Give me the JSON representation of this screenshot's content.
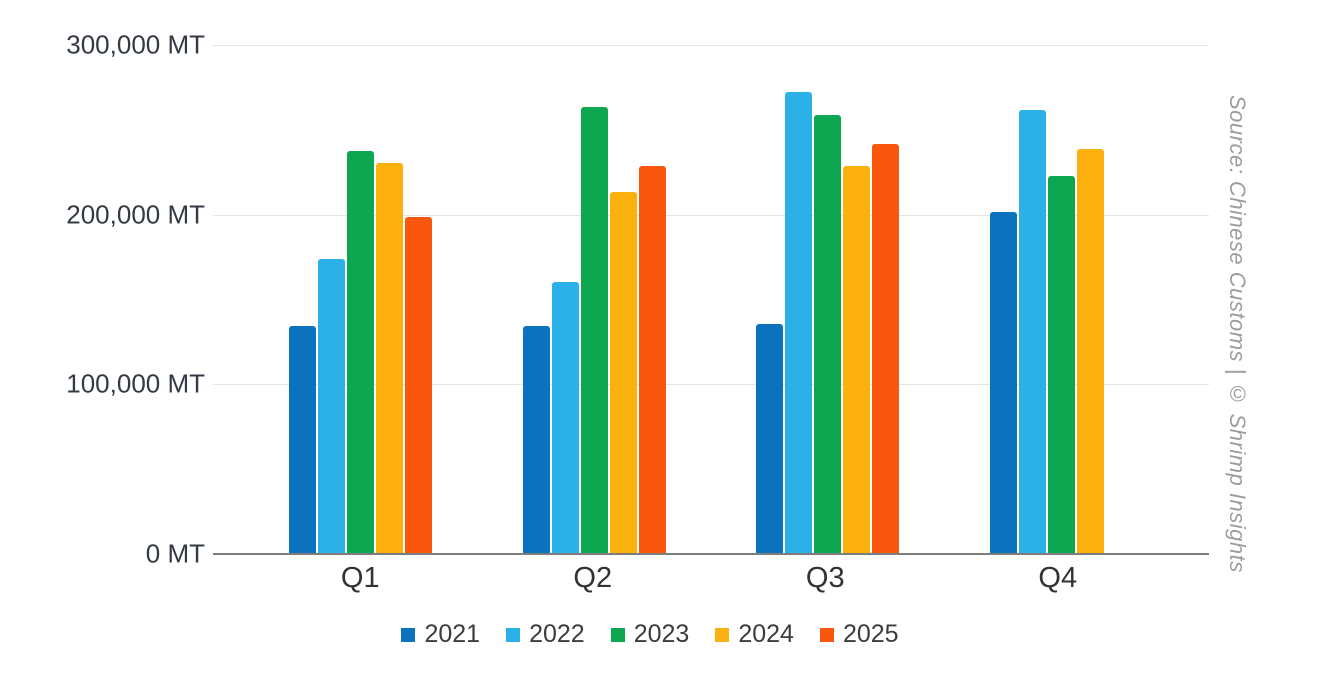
{
  "source_note": "Source: Chinese Customs | © Shrimp Insights",
  "colors": {
    "background": "#ffffff",
    "gridline": "#e4e4e4",
    "axis_line": "#7d7d7d",
    "tick_label": "#333a43",
    "x_label": "#333333",
    "legend_label": "#3c3c3c",
    "source_text": "#9c9c9c"
  },
  "chart_data": {
    "type": "bar",
    "title": "",
    "unit": "MT",
    "categories": [
      "Q1",
      "Q2",
      "Q3",
      "Q4"
    ],
    "series": [
      {
        "name": "2021",
        "color": "#0b72bd",
        "values": [
          134000,
          134000,
          135000,
          201000
        ]
      },
      {
        "name": "2022",
        "color": "#2cb0e8",
        "values": [
          173000,
          160000,
          272000,
          261000
        ]
      },
      {
        "name": "2023",
        "color": "#0ca750",
        "values": [
          237000,
          263000,
          258000,
          222000
        ]
      },
      {
        "name": "2024",
        "color": "#fcb00e",
        "values": [
          230000,
          213000,
          228000,
          238000
        ]
      },
      {
        "name": "2025",
        "color": "#f8570d",
        "values": [
          198000,
          228000,
          241000,
          null
        ]
      }
    ],
    "ylim": [
      0,
      300000
    ],
    "y_ticks": [
      {
        "value": 300000,
        "label": "300,000 MT"
      },
      {
        "value": 200000,
        "label": "200,000 MT"
      },
      {
        "value": 100000,
        "label": "100,000 MT"
      },
      {
        "value": 0,
        "label": "0 MT"
      }
    ],
    "grid": "horizontal",
    "legend_position": "bottom"
  }
}
